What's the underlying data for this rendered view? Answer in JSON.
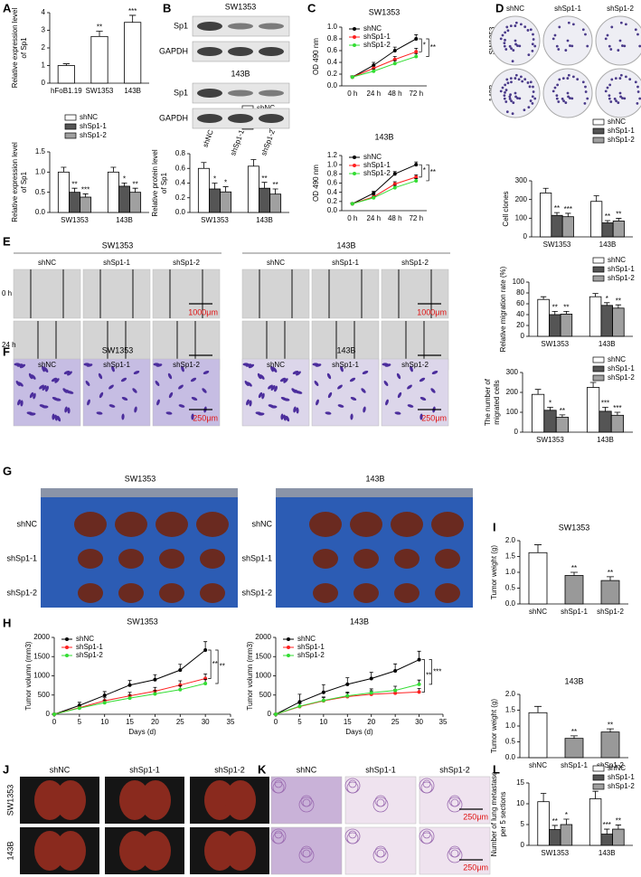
{
  "chart_data": [
    {
      "type": "bar",
      "panel": "A",
      "categories": [
        "hFoB1.19",
        "SW1353",
        "143B"
      ],
      "values": [
        1.0,
        2.65,
        3.45
      ],
      "errors": [
        0.1,
        0.3,
        0.4
      ],
      "annotations": [
        null,
        "**",
        "***"
      ],
      "colors": [
        "#ffffff",
        "#ffffff",
        "#ffffff"
      ],
      "ylabel": [
        "Relative expression level",
        "of Sp1"
      ],
      "ylim": [
        0,
        4
      ],
      "yticks": [
        0,
        1,
        2,
        3,
        4
      ]
    },
    {
      "type": "bar",
      "categories": [
        "SW1353",
        "143B"
      ],
      "ylabel": [
        "Relative expression level",
        "of Sp1"
      ],
      "ylim": [
        0,
        1.5
      ],
      "yticks": [
        {
          "value": 0,
          "label": "0.0"
        },
        0.5,
        {
          "value": 1,
          "label": "1.0"
        },
        1.5
      ],
      "series": [
        {
          "name": "shNC",
          "color": "#ffffff",
          "values": [
            1.0,
            1.0
          ],
          "errors": [
            0.12,
            0.12
          ]
        },
        {
          "name": "shSp1-1",
          "color": "#555555",
          "values": [
            0.5,
            0.65
          ],
          "errors": [
            0.1,
            0.08
          ]
        },
        {
          "name": "shSp1-2",
          "color": "#a0a0a0",
          "values": [
            0.38,
            0.5
          ],
          "errors": [
            0.08,
            0.1
          ]
        }
      ],
      "annotations": [
        [
          "**",
          "*"
        ],
        [
          "***",
          "**"
        ]
      ]
    },
    {
      "type": "bar",
      "categories": [
        "SW1353",
        "143B"
      ],
      "ylabel": [
        "Relative protein level",
        "of Sp1"
      ],
      "ylim": [
        0,
        0.8
      ],
      "yticks": [
        {
          "value": 0,
          "label": "0.0"
        },
        0.2,
        0.4,
        0.6,
        0.8
      ],
      "series": [
        {
          "name": "shNC",
          "color": "#ffffff",
          "values": [
            0.6,
            0.63
          ],
          "errors": [
            0.08,
            0.09
          ]
        },
        {
          "name": "shSp1-1",
          "color": "#555555",
          "values": [
            0.32,
            0.33
          ],
          "errors": [
            0.08,
            0.08
          ]
        },
        {
          "name": "shSp1-2",
          "color": "#a0a0a0",
          "values": [
            0.28,
            0.25
          ],
          "errors": [
            0.07,
            0.07
          ]
        }
      ],
      "annotations": [
        [
          "*",
          "**"
        ],
        [
          "*",
          "**"
        ]
      ]
    },
    {
      "type": "line",
      "panel": "C",
      "title": "SW1353",
      "categories": [
        "0 h",
        "24 h",
        "48 h",
        "72 h"
      ],
      "ylabel": [
        "OD 490 nm"
      ],
      "ylim": [
        0,
        1.0
      ],
      "yticks": [
        {
          "value": 0,
          "label": "0.0"
        },
        0.2,
        0.4,
        0.6,
        0.8,
        {
          "value": 1,
          "label": "1.0"
        }
      ],
      "series": [
        {
          "name": "shNC",
          "color": "#000000",
          "values": [
            0.15,
            0.35,
            0.6,
            0.8
          ],
          "errors": [
            0.02,
            0.05,
            0.06,
            0.07
          ]
        },
        {
          "name": "shSp1-1",
          "color": "#ff2020",
          "values": [
            0.15,
            0.3,
            0.45,
            0.58
          ],
          "errors": [
            0.02,
            0.04,
            0.05,
            0.06
          ]
        },
        {
          "name": "shSp1-2",
          "color": "#33dd33",
          "values": [
            0.15,
            0.25,
            0.38,
            0.5
          ],
          "errors": [
            0.02,
            0.04,
            0.05,
            0.05
          ]
        }
      ],
      "significance": [
        "*",
        "**"
      ]
    },
    {
      "type": "line",
      "title": "143B",
      "categories": [
        "0 h",
        "24 h",
        "48 h",
        "72 h"
      ],
      "ylabel": [
        "OD 490 nm"
      ],
      "ylim": [
        0,
        1.2
      ],
      "yticks": [
        {
          "value": 0,
          "label": "0.0"
        },
        0.2,
        0.4,
        0.6,
        0.8,
        {
          "value": 1,
          "label": "1.0"
        },
        1.2
      ],
      "series": [
        {
          "name": "shNC",
          "color": "#000000",
          "values": [
            0.15,
            0.38,
            0.8,
            1.0
          ],
          "errors": [
            0.02,
            0.04,
            0.05,
            0.06
          ]
        },
        {
          "name": "shSp1-1",
          "color": "#ff2020",
          "values": [
            0.15,
            0.3,
            0.58,
            0.73
          ],
          "errors": [
            0.02,
            0.04,
            0.05,
            0.05
          ]
        },
        {
          "name": "shSp1-2",
          "color": "#33dd33",
          "values": [
            0.15,
            0.28,
            0.5,
            0.65
          ],
          "errors": [
            0.02,
            0.03,
            0.05,
            0.05
          ]
        }
      ],
      "significance": [
        "*",
        "**"
      ]
    },
    {
      "type": "bar",
      "categories": [
        "SW1353",
        "143B"
      ],
      "ylabel": [
        "Cell clones"
      ],
      "ylim": [
        0,
        300
      ],
      "yticks": [
        0,
        100,
        200,
        300
      ],
      "series": [
        {
          "name": "shNC",
          "color": "#ffffff",
          "values": [
            235,
            190
          ],
          "errors": [
            25,
            30
          ]
        },
        {
          "name": "shSp1-1",
          "color": "#555555",
          "values": [
            115,
            75
          ],
          "errors": [
            15,
            12
          ]
        },
        {
          "name": "shSp1-2",
          "color": "#a0a0a0",
          "values": [
            108,
            85
          ],
          "errors": [
            18,
            14
          ]
        }
      ],
      "annotations": [
        [
          "**",
          "**"
        ],
        [
          "***",
          "**"
        ]
      ]
    },
    {
      "type": "bar",
      "categories": [
        "SW1353",
        "143B"
      ],
      "ylabel": [
        "Relative migration rate (%)"
      ],
      "ylim": [
        0,
        100
      ],
      "yticks": [
        0,
        20,
        40,
        60,
        80,
        100
      ],
      "series": [
        {
          "name": "shNC",
          "color": "#ffffff",
          "values": [
            68,
            73
          ],
          "errors": [
            5,
            6
          ]
        },
        {
          "name": "shSp1-1",
          "color": "#555555",
          "values": [
            40,
            57
          ],
          "errors": [
            6,
            5
          ]
        },
        {
          "name": "shSp1-2",
          "color": "#a0a0a0",
          "values": [
            41,
            52
          ],
          "errors": [
            5,
            6
          ]
        }
      ],
      "annotations": [
        [
          "**",
          "*"
        ],
        [
          "**",
          "**"
        ]
      ]
    },
    {
      "type": "bar",
      "categories": [
        "SW1353",
        "143B"
      ],
      "ylabel": [
        "The number of",
        "migrated cells"
      ],
      "ylim": [
        0,
        300
      ],
      "yticks": [
        0,
        100,
        200,
        300
      ],
      "series": [
        {
          "name": "shNC",
          "color": "#ffffff",
          "values": [
            190,
            225
          ],
          "errors": [
            25,
            25
          ]
        },
        {
          "name": "shSp1-1",
          "color": "#555555",
          "values": [
            110,
            105
          ],
          "errors": [
            15,
            20
          ]
        },
        {
          "name": "shSp1-2",
          "color": "#a0a0a0",
          "values": [
            75,
            85
          ],
          "errors": [
            12,
            15
          ]
        }
      ],
      "annotations": [
        [
          "*",
          "***"
        ],
        [
          "**",
          "***"
        ]
      ]
    },
    {
      "type": "line",
      "panel": "H",
      "title": "SW1353",
      "x": [
        0,
        5,
        10,
        15,
        20,
        25,
        30
      ],
      "xlim": [
        0,
        35
      ],
      "xticks": [
        0,
        5,
        10,
        15,
        20,
        25,
        30,
        35
      ],
      "xlabel": "Days (d)",
      "ylabel": [
        "Tumor volumn (mm3)"
      ],
      "ylim": [
        0,
        2000
      ],
      "yticks": [
        0,
        500,
        1000,
        1500,
        2000
      ],
      "series": [
        {
          "name": "shNC",
          "color": "#000000",
          "values": [
            0,
            230,
            490,
            760,
            900,
            1150,
            1670
          ],
          "errors": [
            0,
            80,
            100,
            120,
            130,
            150,
            220
          ]
        },
        {
          "name": "shSp1-1",
          "color": "#ff2020",
          "values": [
            0,
            170,
            350,
            480,
            600,
            760,
            930
          ],
          "errors": [
            0,
            60,
            80,
            90,
            100,
            110,
            120
          ]
        },
        {
          "name": "shSp1-2",
          "color": "#33dd33",
          "values": [
            0,
            160,
            300,
            420,
            530,
            640,
            800
          ],
          "errors": [
            0,
            60,
            70,
            80,
            90,
            100,
            110
          ]
        }
      ],
      "significance": [
        "**",
        "**"
      ]
    },
    {
      "type": "line",
      "title": "143B",
      "x": [
        0,
        5,
        10,
        15,
        20,
        25,
        30
      ],
      "xlim": [
        0,
        35
      ],
      "xticks": [
        0,
        5,
        10,
        15,
        20,
        25,
        30,
        35
      ],
      "xlabel": "Days (d)",
      "ylabel": [
        "Tumor volumn (mm3)"
      ],
      "ylim": [
        0,
        2000
      ],
      "yticks": [
        0,
        500,
        1000,
        1500,
        2000
      ],
      "series": [
        {
          "name": "shNC",
          "color": "#000000",
          "values": [
            0,
            320,
            570,
            780,
            930,
            1130,
            1420
          ],
          "errors": [
            0,
            200,
            200,
            170,
            160,
            180,
            220
          ]
        },
        {
          "name": "shSp1-1",
          "color": "#ff2020",
          "values": [
            0,
            200,
            350,
            460,
            520,
            550,
            580
          ],
          "errors": [
            0,
            80,
            90,
            90,
            90,
            90,
            90
          ]
        },
        {
          "name": "shSp1-2",
          "color": "#33dd33",
          "values": [
            0,
            210,
            360,
            480,
            560,
            620,
            780
          ],
          "errors": [
            0,
            80,
            90,
            100,
            100,
            110,
            110
          ]
        }
      ],
      "significance": [
        "**",
        "***"
      ]
    },
    {
      "type": "bar",
      "panel": "I",
      "title": "SW1353",
      "categories": [
        "shNC",
        "shSp1-1",
        "shSp1-2"
      ],
      "values": [
        1.62,
        0.9,
        0.74
      ],
      "errors": [
        0.25,
        0.1,
        0.12
      ],
      "annotations": [
        null,
        "**",
        "**"
      ],
      "colors": [
        "#ffffff",
        "#999999",
        "#999999"
      ],
      "ylabel": [
        "Tumor weight (g)"
      ],
      "ylim": [
        0,
        2.0
      ],
      "yticks": [
        {
          "value": 0,
          "label": "0.0"
        },
        0.5,
        {
          "value": 1,
          "label": "1.0"
        },
        1.5,
        {
          "value": 2,
          "label": "2.0"
        }
      ]
    },
    {
      "type": "bar",
      "title": "143B",
      "categories": [
        "shNC",
        "shSp1-1",
        "shSp1-2"
      ],
      "values": [
        1.42,
        0.61,
        0.81
      ],
      "errors": [
        0.2,
        0.08,
        0.1
      ],
      "annotations": [
        null,
        "**",
        "**"
      ],
      "colors": [
        "#ffffff",
        "#999999",
        "#999999"
      ],
      "ylabel": [
        "Tumor weight (g)"
      ],
      "ylim": [
        0,
        2.0
      ],
      "yticks": [
        {
          "value": 0,
          "label": "0.0"
        },
        0.5,
        {
          "value": 1,
          "label": "1.0"
        },
        1.5,
        {
          "value": 2,
          "label": "2.0"
        }
      ]
    },
    {
      "type": "bar",
      "panel": "L",
      "categories": [
        "SW1353",
        "143B"
      ],
      "ylabel": [
        "Number of lung metastase",
        "per 5 sections"
      ],
      "ylim": [
        0,
        15
      ],
      "yticks": [
        0,
        5,
        10,
        15
      ],
      "series": [
        {
          "name": "shNC",
          "color": "#ffffff",
          "values": [
            10.5,
            11.2
          ],
          "errors": [
            2.0,
            1.8
          ]
        },
        {
          "name": "shSp1-1",
          "color": "#555555",
          "values": [
            3.8,
            2.7
          ],
          "errors": [
            1.0,
            1.2
          ]
        },
        {
          "name": "shSp1-2",
          "color": "#a0a0a0",
          "values": [
            5.0,
            3.9
          ],
          "errors": [
            1.3,
            1.0
          ]
        }
      ],
      "annotations": [
        [
          "**",
          "***"
        ],
        [
          "*",
          "**"
        ]
      ]
    }
  ],
  "images": {
    "B": {
      "panel": "B",
      "groups": [
        {
          "title": "SW1353",
          "rows": [
            "Sp1",
            "GAPDH"
          ]
        },
        {
          "title": "143B",
          "rows": [
            "Sp1",
            "GAPDH"
          ]
        }
      ],
      "lanes": [
        "shNC",
        "shSp1-1",
        "shSp1-2"
      ]
    },
    "D": {
      "panel": "D",
      "columns": [
        "shNC",
        "shSp1-1",
        "shSp1-2"
      ],
      "rows": [
        "SW1353",
        "143B"
      ]
    },
    "E": {
      "panel": "E",
      "groups": [
        "SW1353",
        "143B"
      ],
      "columns": [
        "shNC",
        "shSp1-1",
        "shSp1-2"
      ],
      "rows": [
        "0 h",
        "24 h"
      ],
      "scale": "1000μm"
    },
    "F": {
      "panel": "F",
      "groups": [
        "SW1353",
        "143B"
      ],
      "columns": [
        "shNC",
        "shSp1-1",
        "shSp1-2"
      ],
      "scale": "250μm"
    },
    "G": {
      "panel": "G",
      "groups": [
        "SW1353",
        "143B"
      ],
      "rows": [
        "shNC",
        "shSp1-1",
        "shSp1-2"
      ]
    },
    "J": {
      "panel": "J",
      "columns": [
        "shNC",
        "shSp1-1",
        "shSp1-2"
      ],
      "rows": [
        "SW1353",
        "143B"
      ]
    },
    "K": {
      "panel": "K",
      "columns": [
        "shNC",
        "shSp1-1",
        "shSp1-2"
      ],
      "scale": "250μm"
    }
  }
}
